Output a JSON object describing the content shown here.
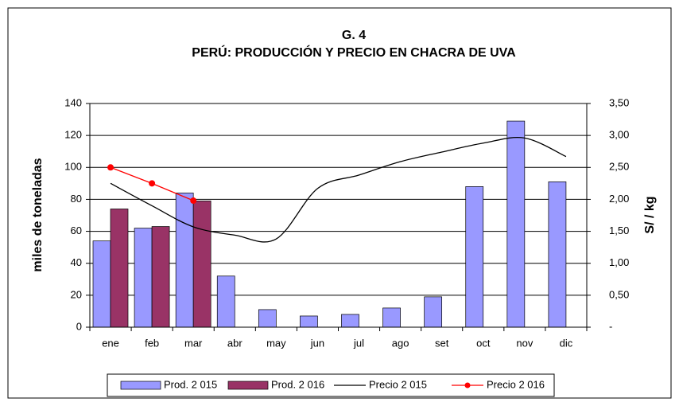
{
  "chart_data": {
    "type": "bar",
    "title": "G. 4",
    "subtitle": "PERÚ: PRODUCCIÓN Y PRECIO EN CHACRA DE UVA",
    "y_label": "miles de toneladas",
    "y2_label": "S/ / kg",
    "categories": [
      "ene",
      "feb",
      "mar",
      "abr",
      "may",
      "jun",
      "jul",
      "ago",
      "set",
      "oct",
      "nov",
      "dic"
    ],
    "series": [
      {
        "name": "Prod. 2 015",
        "color": "#9999ff",
        "type": "bar",
        "values": [
          54,
          62,
          84,
          32,
          11,
          7,
          8,
          12,
          19,
          88,
          129,
          91
        ]
      },
      {
        "name": "Prod. 2 016",
        "color": "#993366",
        "type": "bar",
        "values": [
          74,
          63,
          79,
          null,
          null,
          null,
          null,
          null,
          null,
          null,
          null,
          null
        ]
      },
      {
        "name": "Precio 2 015",
        "color": "#000000",
        "type": "line",
        "axis": "y2",
        "values": [
          2.25,
          1.9,
          1.57,
          1.44,
          1.38,
          2.17,
          2.38,
          2.59,
          2.74,
          2.88,
          2.96,
          2.67
        ]
      },
      {
        "name": "Precio 2 016",
        "color": "#ff0000",
        "type": "line",
        "markers": true,
        "axis": "y2",
        "values": [
          2.5,
          2.25,
          1.98,
          null,
          null,
          null,
          null,
          null,
          null,
          null,
          null,
          null
        ]
      }
    ],
    "ylim": [
      0,
      140
    ],
    "yticks": [
      0,
      20,
      40,
      60,
      80,
      100,
      120,
      140
    ],
    "y2lim": [
      0,
      3.5
    ],
    "y2ticks": [
      {
        "value": 0,
        "label": "-"
      },
      {
        "value": 0.5,
        "label": "0,50"
      },
      {
        "value": 1,
        "label": "1,00"
      },
      {
        "value": 1.5,
        "label": "1,50"
      },
      {
        "value": 2,
        "label": "2,00"
      },
      {
        "value": 2.5,
        "label": "2,50"
      },
      {
        "value": 3,
        "label": "3,00"
      },
      {
        "value": 3.5,
        "label": "3,50"
      }
    ],
    "grid": true,
    "legend": "bottom"
  }
}
